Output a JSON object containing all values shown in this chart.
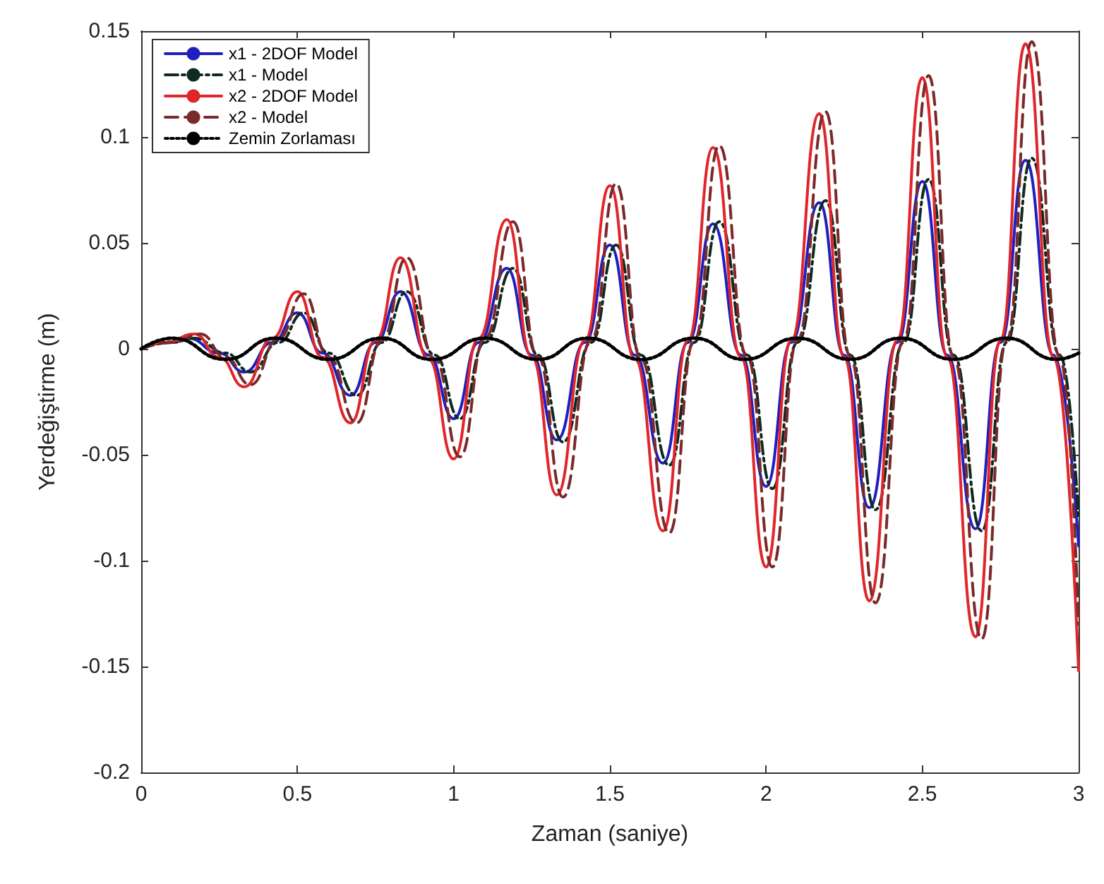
{
  "chart_data": {
    "type": "line",
    "xlabel": "Zaman (saniye)",
    "ylabel": "Yerdeğiştirme (m)",
    "xlim": [
      0,
      3
    ],
    "ylim": [
      -0.2,
      0.15
    ],
    "xticks": [
      0,
      0.5,
      1,
      1.5,
      2,
      2.5,
      3
    ],
    "yticks": [
      -0.2,
      -0.15,
      -0.1,
      -0.05,
      0,
      0.05,
      0.1,
      0.15
    ],
    "grid": false,
    "legend": "top left",
    "marker": "none",
    "series": [
      {
        "name": "x1 - 2DOF Model",
        "color": "#1f1fbf",
        "line_style": "solid",
        "x": [
          0,
          0.08,
          0.15,
          0.25,
          0.33,
          0.42,
          0.5,
          0.58,
          0.67,
          0.75,
          0.83,
          0.92,
          1.0,
          1.08,
          1.17,
          1.25,
          1.33,
          1.42,
          1.5,
          1.58,
          1.67,
          1.75,
          1.83,
          1.92,
          2.0,
          2.08,
          2.17,
          2.25,
          2.33,
          2.42,
          2.5,
          2.58,
          2.67,
          2.75,
          2.83,
          2.92,
          3.0
        ],
        "values": [
          0,
          0.003,
          0.005,
          -0.002,
          -0.011,
          0.003,
          0.017,
          -0.002,
          -0.022,
          0.003,
          0.027,
          -0.003,
          -0.033,
          0.003,
          0.038,
          -0.003,
          -0.043,
          0.003,
          0.049,
          -0.003,
          -0.054,
          0.003,
          0.059,
          -0.003,
          -0.065,
          0.003,
          0.069,
          -0.003,
          -0.075,
          0.003,
          0.079,
          -0.003,
          -0.085,
          0.003,
          0.089,
          -0.003,
          -0.093
        ]
      },
      {
        "name": "x1 - Model",
        "color": "#0f2a1f",
        "line_style": "dashdot",
        "x": [
          0,
          0.1,
          0.17,
          0.27,
          0.35,
          0.44,
          0.52,
          0.6,
          0.69,
          0.77,
          0.85,
          0.94,
          1.02,
          1.1,
          1.19,
          1.27,
          1.35,
          1.44,
          1.52,
          1.6,
          1.69,
          1.77,
          1.85,
          1.94,
          2.02,
          2.1,
          2.19,
          2.27,
          2.35,
          2.44,
          2.52,
          2.6,
          2.69,
          2.77,
          2.85,
          2.94,
          3.0
        ],
        "values": [
          0,
          0.003,
          0.005,
          -0.002,
          -0.011,
          0.003,
          0.017,
          -0.002,
          -0.022,
          0.003,
          0.027,
          -0.003,
          -0.033,
          0.003,
          0.038,
          -0.003,
          -0.044,
          0.003,
          0.049,
          -0.003,
          -0.055,
          0.003,
          0.06,
          -0.003,
          -0.066,
          0.003,
          0.07,
          -0.003,
          -0.076,
          0.003,
          0.08,
          -0.003,
          -0.086,
          0.003,
          0.09,
          -0.003,
          -0.08
        ]
      },
      {
        "name": "x2 - 2DOF Model",
        "color": "#e0262b",
        "line_style": "solid",
        "x": [
          0,
          0.08,
          0.17,
          0.25,
          0.33,
          0.42,
          0.5,
          0.58,
          0.67,
          0.75,
          0.83,
          0.92,
          1.0,
          1.08,
          1.17,
          1.25,
          1.33,
          1.42,
          1.5,
          1.58,
          1.67,
          1.75,
          1.83,
          1.92,
          2.0,
          2.08,
          2.17,
          2.25,
          2.33,
          2.42,
          2.5,
          2.58,
          2.67,
          2.75,
          2.83,
          2.92,
          3.0
        ],
        "values": [
          0,
          0.003,
          0.007,
          -0.004,
          -0.018,
          0.005,
          0.027,
          -0.004,
          -0.035,
          0.004,
          0.043,
          -0.005,
          -0.052,
          0.005,
          0.061,
          -0.004,
          -0.069,
          0.004,
          0.077,
          -0.005,
          -0.086,
          0.004,
          0.095,
          -0.004,
          -0.103,
          0.004,
          0.111,
          -0.004,
          -0.119,
          0.004,
          0.128,
          -0.004,
          -0.136,
          0.004,
          0.144,
          -0.004,
          -0.152
        ]
      },
      {
        "name": "x2 - Model",
        "color": "#7a2a2a",
        "line_style": "dashed",
        "x": [
          0,
          0.1,
          0.19,
          0.27,
          0.35,
          0.44,
          0.52,
          0.6,
          0.69,
          0.77,
          0.85,
          0.94,
          1.02,
          1.1,
          1.19,
          1.27,
          1.35,
          1.44,
          1.52,
          1.6,
          1.69,
          1.77,
          1.85,
          1.94,
          2.02,
          2.1,
          2.19,
          2.27,
          2.35,
          2.44,
          2.52,
          2.6,
          2.69,
          2.77,
          2.85,
          2.94,
          3.0
        ],
        "values": [
          0,
          0.003,
          0.007,
          -0.004,
          -0.017,
          0.005,
          0.026,
          -0.004,
          -0.035,
          0.004,
          0.043,
          -0.005,
          -0.051,
          0.005,
          0.06,
          -0.004,
          -0.07,
          0.004,
          0.078,
          -0.005,
          -0.087,
          0.004,
          0.096,
          -0.004,
          -0.103,
          0.004,
          0.112,
          -0.004,
          -0.12,
          0.004,
          0.129,
          -0.004,
          -0.137,
          0.004,
          0.145,
          -0.004,
          -0.13
        ]
      },
      {
        "name": "Zemin Zorlaması",
        "color": "#000000",
        "line_style": "dotted",
        "x": [
          0,
          0.1,
          0.27,
          0.43,
          0.6,
          0.77,
          0.93,
          1.1,
          1.27,
          1.43,
          1.6,
          1.77,
          1.93,
          2.1,
          2.27,
          2.43,
          2.6,
          2.77,
          2.93,
          3.0
        ],
        "values": [
          0,
          0.005,
          -0.005,
          0.005,
          -0.005,
          0.005,
          -0.005,
          0.005,
          -0.005,
          0.005,
          -0.005,
          0.005,
          -0.005,
          0.005,
          -0.005,
          0.005,
          -0.005,
          0.005,
          -0.005,
          -0.002
        ]
      }
    ]
  }
}
